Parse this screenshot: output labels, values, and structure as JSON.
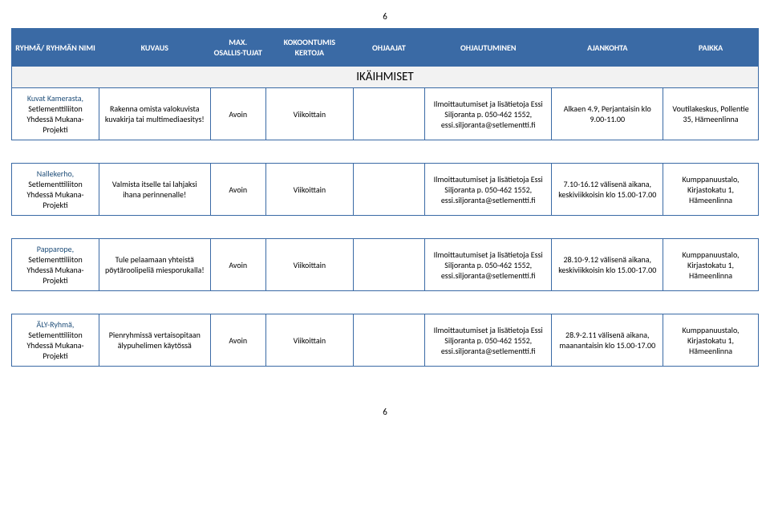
{
  "pageNumberTop": "6",
  "pageNumberBottom": "6",
  "headers": {
    "name": "RYHMÄ/ RYHMÄN NIMI",
    "desc": "KUVAUS",
    "max": "MAX. OSALLIS-TUJAT",
    "times": "KOKOONTUMIS KERTOJA",
    "leads": "OHJAAJAT",
    "signup": "OHJAUTUMINEN",
    "when": "AJANKOHTA",
    "place": "PAIKKA"
  },
  "sectionTitle": "IKÄIHMISET",
  "rows": {
    "r1": {
      "title": "Kuvat Kamerasta,",
      "subtitle": "Setlementtiliiton Yhdessä Mukana- Projekti",
      "desc": "Rakenna omista valokuvista kuvakirja tai multimediaesitys!",
      "max": "Avoin",
      "times": "Viikoittain",
      "leads": "",
      "signup": "Ilmoittautumiset ja lisätietoja Essi Siljoranta p. 050-462 1552, essi.siljoranta@setlementti.fi",
      "when": "Alkaen 4.9, Perjantaisin klo 9.00-11.00",
      "place": "Voutilakeskus, Pollentie 35, Hämeenlinna"
    },
    "r2": {
      "title": "Nallekerho,",
      "subtitle": "Setlementtiliiton Yhdessä Mukana- Projekti",
      "desc": "Valmista itselle tai lahjaksi ihana perinnenalle!",
      "max": "Avoin",
      "times": "Viikoittain",
      "leads": "",
      "signup": "Ilmoittautumiset ja lisätietoja Essi Siljoranta p. 050-462 1552, essi.siljoranta@setlementti.fi",
      "when": "7.10-16.12 välisenä aikana, keskiviikkoisin klo 15.00-17.00",
      "place": "Kumppanuustalo, Kirjastokatu 1, Hämeenlinna"
    },
    "r3": {
      "title": "Papparope,",
      "subtitle": "Setlementtiliiton Yhdessä Mukana- Projekti",
      "desc": "Tule pelaamaan yhteistä pöytäroolipeliä miesporukalla!",
      "max": "Avoin",
      "times": "Viikoittain",
      "leads": "",
      "signup": "Ilmoittautumiset ja lisätietoja Essi Siljoranta p. 050-462 1552, essi.siljoranta@setlementti.fi",
      "when": "28.10-9.12 välisenä aikana, keskiviikkoisin klo 15.00-17.00",
      "place": "Kumppanuustalo, Kirjastokatu 1, Hämeenlinna"
    },
    "r4": {
      "title": "ÄLY-Ryhmä,",
      "subtitle": "Setlementtiliiton Yhdessä Mukana- Projekti",
      "desc": "Pienryhmissä vertaisopitaan älypuhelimen käytössä",
      "max": "Avoin",
      "times": "Viikoittain",
      "leads": "",
      "signup": "Ilmoittautumiset ja lisätietoja Essi Siljoranta p. 050-462 1552, essi.siljoranta@setlementti.fi",
      "when": "28.9-2.11 välisenä aikana, maanantaisin klo 15.00-17.00",
      "place": "Kumppanuustalo, Kirjastokatu 1, Hämeenlinna"
    }
  },
  "styling": {
    "headerBg": "#3a6aa5",
    "headerFg": "#ffffff",
    "borderColor": "#3a6aa5",
    "titleColor": "#1f4e79",
    "sectionBg": "#f2f2f2",
    "bodyFont": "Calibri",
    "bodyFontSize": 10
  }
}
